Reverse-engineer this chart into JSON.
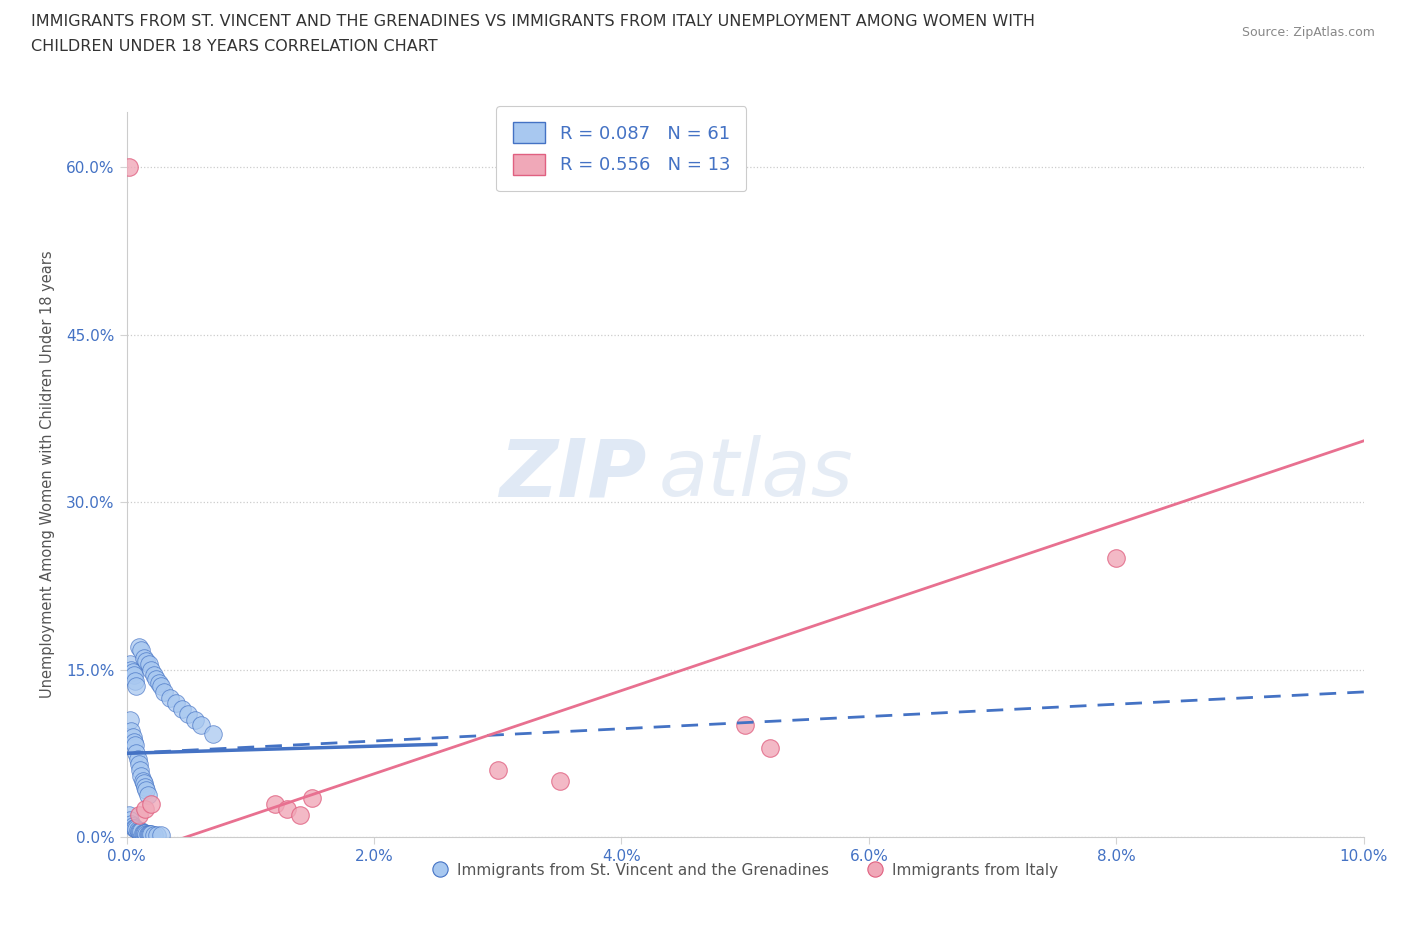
{
  "title_line1": "IMMIGRANTS FROM ST. VINCENT AND THE GRENADINES VS IMMIGRANTS FROM ITALY UNEMPLOYMENT AMONG WOMEN WITH",
  "title_line2": "CHILDREN UNDER 18 YEARS CORRELATION CHART",
  "source": "Source: ZipAtlas.com",
  "ylabel": "Unemployment Among Women with Children Under 18 years",
  "xlim": [
    0.0,
    0.1
  ],
  "ylim": [
    0.0,
    0.65
  ],
  "yticks": [
    0.0,
    0.15,
    0.3,
    0.45,
    0.6
  ],
  "xticks": [
    0.0,
    0.02,
    0.04,
    0.06,
    0.08,
    0.1
  ],
  "xtick_labels": [
    "0.0%",
    "2.0%",
    "4.0%",
    "6.0%",
    "8.0%",
    "10.0%"
  ],
  "ytick_labels": [
    "0.0%",
    "15.0%",
    "30.0%",
    "45.0%",
    "60.0%"
  ],
  "blue_fill": "#A8C8F0",
  "blue_edge": "#4472C4",
  "pink_fill": "#F0A8B8",
  "pink_edge": "#E06080",
  "blue_line_color": "#4472C4",
  "pink_line_color": "#E87090",
  "R_blue": 0.087,
  "N_blue": 61,
  "R_pink": 0.556,
  "N_pink": 13,
  "legend_label_blue": "Immigrants from St. Vincent and the Grenadines",
  "legend_label_pink": "Immigrants from Italy",
  "background_color": "#FFFFFF",
  "blue_scatter_x": [
    0.0002,
    0.0003,
    0.0004,
    0.0005,
    0.0006,
    0.0007,
    0.0008,
    0.0009,
    0.001,
    0.0011,
    0.0012,
    0.0013,
    0.0014,
    0.0015,
    0.0016,
    0.0017,
    0.0018,
    0.0019,
    0.002,
    0.0022,
    0.0025,
    0.0028,
    0.0003,
    0.0004,
    0.0005,
    0.0006,
    0.0007,
    0.0008,
    0.0009,
    0.001,
    0.0011,
    0.0012,
    0.0013,
    0.0014,
    0.0015,
    0.0016,
    0.0017,
    0.0003,
    0.0004,
    0.0005,
    0.0006,
    0.0007,
    0.0008,
    0.001,
    0.0012,
    0.0014,
    0.0016,
    0.0018,
    0.002,
    0.0022,
    0.0024,
    0.0026,
    0.0028,
    0.003,
    0.0035,
    0.004,
    0.0045,
    0.005,
    0.0055,
    0.006,
    0.007
  ],
  "blue_scatter_y": [
    0.02,
    0.015,
    0.012,
    0.01,
    0.008,
    0.008,
    0.007,
    0.006,
    0.005,
    0.005,
    0.005,
    0.004,
    0.004,
    0.004,
    0.003,
    0.003,
    0.003,
    0.003,
    0.003,
    0.002,
    0.002,
    0.002,
    0.105,
    0.095,
    0.09,
    0.085,
    0.082,
    0.075,
    0.07,
    0.065,
    0.06,
    0.055,
    0.05,
    0.048,
    0.045,
    0.042,
    0.038,
    0.155,
    0.15,
    0.148,
    0.145,
    0.14,
    0.135,
    0.17,
    0.168,
    0.16,
    0.158,
    0.155,
    0.15,
    0.145,
    0.142,
    0.138,
    0.135,
    0.13,
    0.125,
    0.12,
    0.115,
    0.11,
    0.105,
    0.1,
    0.092
  ],
  "pink_scatter_x": [
    0.0002,
    0.001,
    0.0015,
    0.002,
    0.012,
    0.013,
    0.014,
    0.015,
    0.03,
    0.035,
    0.05,
    0.052,
    0.08
  ],
  "pink_scatter_y": [
    0.6,
    0.02,
    0.025,
    0.03,
    0.03,
    0.025,
    0.02,
    0.035,
    0.06,
    0.05,
    0.1,
    0.08,
    0.25
  ]
}
